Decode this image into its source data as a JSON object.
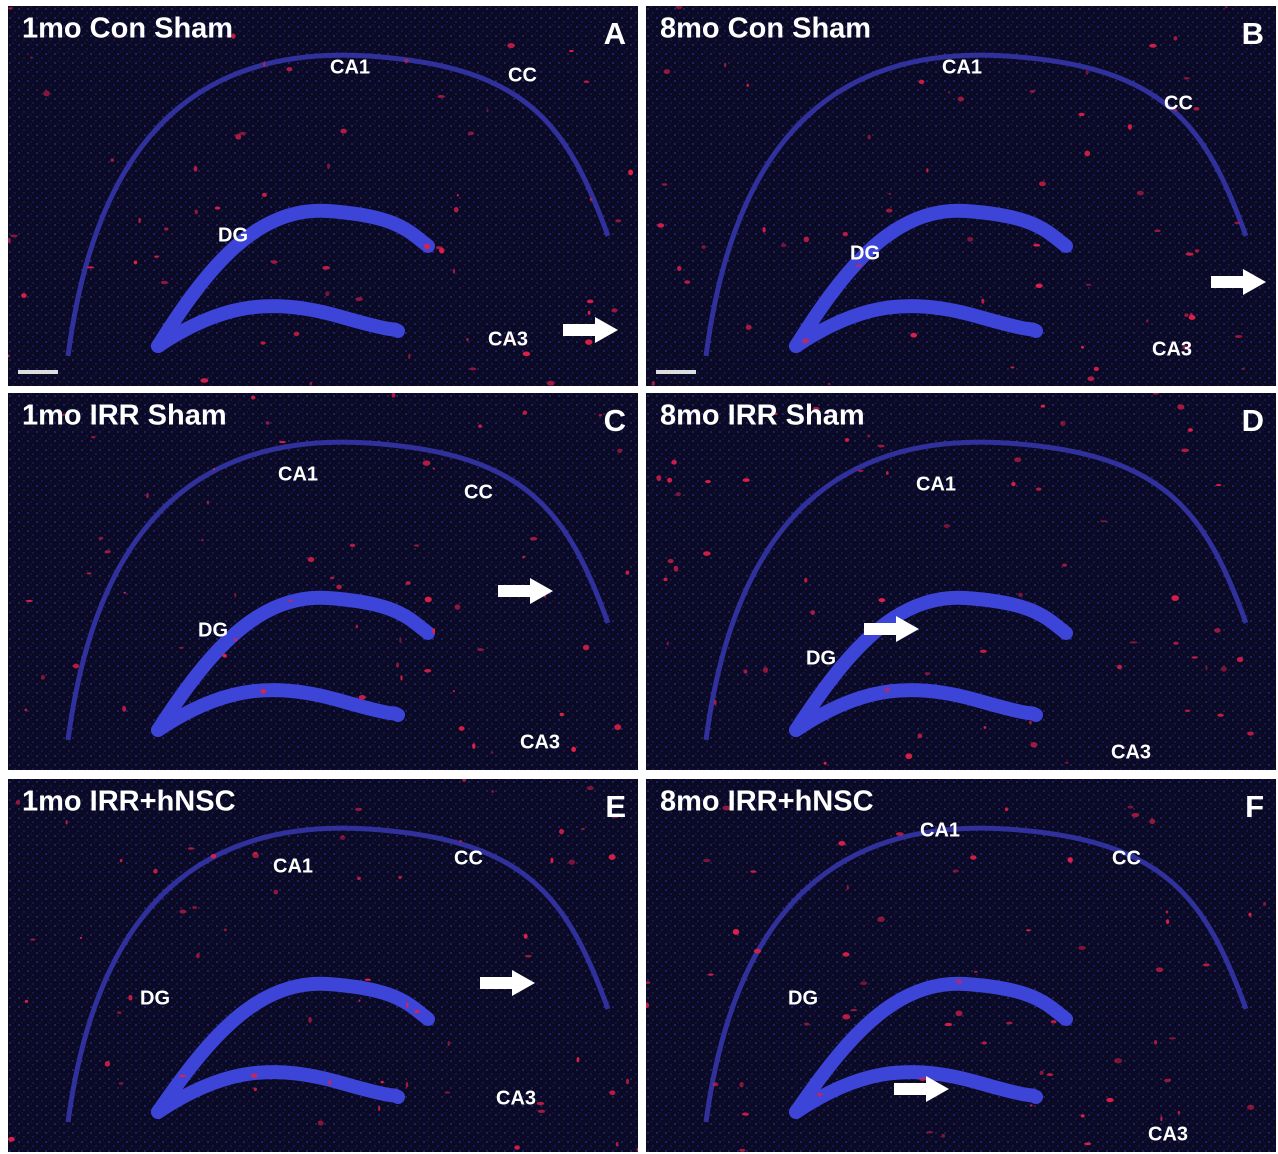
{
  "panels": [
    {
      "title": "1mo Con Sham",
      "letter": "A",
      "regions": [
        "CA1",
        "CC",
        "DG",
        "CA3"
      ]
    },
    {
      "title": "8mo Con Sham",
      "letter": "B",
      "regions": [
        "CA1",
        "CC",
        "DG",
        "CA3"
      ]
    },
    {
      "title": "1mo IRR Sham",
      "letter": "C",
      "regions": [
        "CA1",
        "CC",
        "DG",
        "CA3"
      ]
    },
    {
      "title": "8mo IRR Sham",
      "letter": "D",
      "regions": [
        "CA1",
        "DG",
        "CA3"
      ]
    },
    {
      "title": "1mo IRR+hNSC",
      "letter": "E",
      "regions": [
        "CA1",
        "CC",
        "DG",
        "CA3"
      ]
    },
    {
      "title": "8mo IRR+hNSC",
      "letter": "F",
      "regions": [
        "CA1",
        "CC",
        "DG",
        "CA3"
      ]
    }
  ]
}
